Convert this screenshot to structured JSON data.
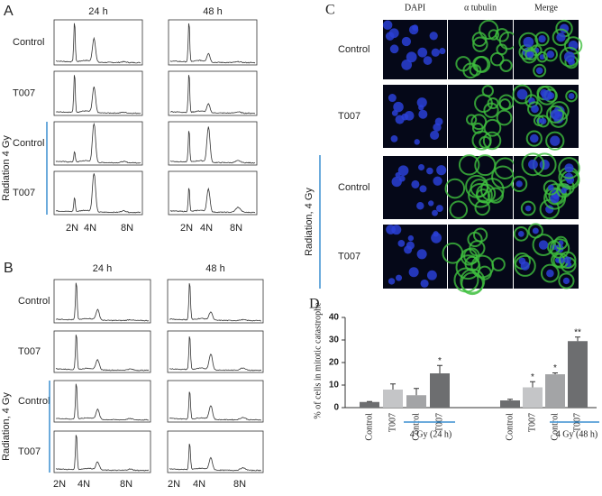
{
  "panel_a": {
    "letter": "A",
    "columns": [
      "24 h",
      "48 h"
    ],
    "rows": [
      "Control",
      "T007",
      "Control",
      "T007"
    ],
    "group_label": "Radiation 4 Gy",
    "x_labels": [
      "2N",
      "4N",
      "8N"
    ]
  },
  "panel_b": {
    "letter": "B",
    "columns": [
      "24 h",
      "48 h"
    ],
    "rows": [
      "Control",
      "T007",
      "Control",
      "T007"
    ],
    "group_label": "Radiation, 4 Gy",
    "x_labels": [
      "2N",
      "4N",
      "8N"
    ]
  },
  "panel_c": {
    "letter": "C",
    "columns": [
      "DAPI",
      "α tubulin",
      "Merge"
    ],
    "rows": [
      "Control",
      "T007",
      "Control",
      "T007"
    ],
    "group_label": "Radiation, 4 Gy"
  },
  "chart_data": {
    "type": "bar",
    "panel_label": "D",
    "y_label": "% of cells in mitotic catastrophe",
    "categories": [
      "Control",
      "T007",
      "Control",
      "T007",
      "Control",
      "T007",
      "Control",
      "T007"
    ],
    "values": [
      2.5,
      8,
      5.5,
      15.2,
      3.2,
      9,
      14.8,
      29.5
    ],
    "errors": [
      0.2,
      2.5,
      3,
      3.5,
      0.5,
      2.5,
      0.6,
      1.8
    ],
    "colors": [
      "#6d6e70",
      "#c4c5c7",
      "#a3a4a6",
      "#6d6e70",
      "#6d6e70",
      "#c4c5c7",
      "#a3a4a6",
      "#6d6e70"
    ],
    "annotations": [
      null,
      null,
      null,
      "*",
      null,
      "*",
      "*",
      "**"
    ],
    "groups": [
      "4 Gy (24 h)",
      "4 Gy (48 h)"
    ],
    "ylim": [
      0,
      40
    ],
    "yticks": [
      0,
      10,
      20,
      30,
      40
    ]
  }
}
